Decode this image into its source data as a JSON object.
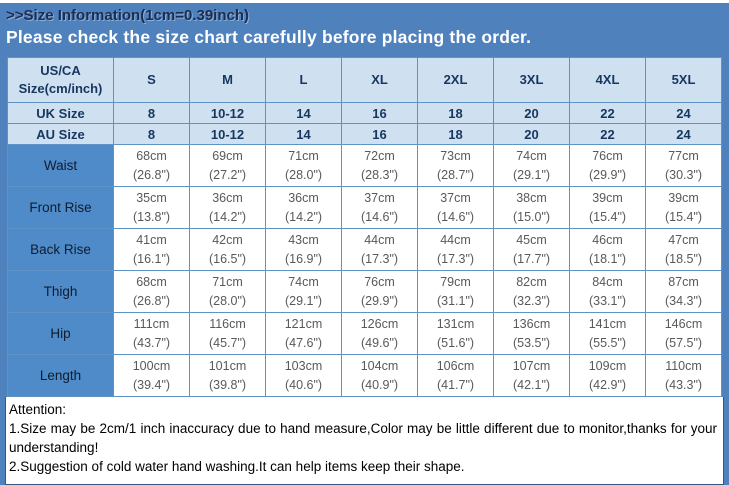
{
  "page": {
    "title": ">>Size Information(1cm=0.39inch)",
    "banner": "Please check the size chart carefully before placing the order."
  },
  "table": {
    "corner_header": "US/CA Size(cm/inch)",
    "size_columns": [
      "S",
      "M",
      "L",
      "XL",
      "2XL",
      "3XL",
      "4XL",
      "5XL"
    ],
    "simple_rows": [
      {
        "label": "UK Size",
        "values": [
          "8",
          "10-12",
          "14",
          "16",
          "18",
          "20",
          "22",
          "24"
        ]
      },
      {
        "label": "AU Size",
        "values": [
          "8",
          "10-12",
          "14",
          "16",
          "18",
          "20",
          "22",
          "24"
        ]
      }
    ],
    "measurement_rows": [
      {
        "label": "Waist",
        "cm": [
          "68cm",
          "69cm",
          "71cm",
          "72cm",
          "73cm",
          "74cm",
          "76cm",
          "77cm"
        ],
        "inch": [
          "(26.8\")",
          "(27.2\")",
          "(28.0\")",
          "(28.3\")",
          "(28.7\")",
          "(29.1\")",
          "(29.9\")",
          "(30.3\")"
        ]
      },
      {
        "label": "Front Rise",
        "cm": [
          "35cm",
          "36cm",
          "36cm",
          "37cm",
          "37cm",
          "38cm",
          "39cm",
          "39cm"
        ],
        "inch": [
          "(13.8\")",
          "(14.2\")",
          "(14.2\")",
          "(14.6\")",
          "(14.6\")",
          "(15.0\")",
          "(15.4\")",
          "(15.4\")"
        ]
      },
      {
        "label": "Back Rise",
        "cm": [
          "41cm",
          "42cm",
          "43cm",
          "44cm",
          "44cm",
          "45cm",
          "46cm",
          "47cm"
        ],
        "inch": [
          "(16.1\")",
          "(16.5\")",
          "(16.9\")",
          "(17.3\")",
          "(17.3\")",
          "(17.7\")",
          "(18.1\")",
          "(18.5\")"
        ]
      },
      {
        "label": "Thigh",
        "cm": [
          "68cm",
          "71cm",
          "74cm",
          "76cm",
          "79cm",
          "82cm",
          "84cm",
          "87cm"
        ],
        "inch": [
          "(26.8\")",
          "(28.0\")",
          "(29.1\")",
          "(29.9\")",
          "(31.1\")",
          "(32.3\")",
          "(33.1\")",
          "(34.3\")"
        ]
      },
      {
        "label": "Hip",
        "cm": [
          "111cm",
          "116cm",
          "121cm",
          "126cm",
          "131cm",
          "136cm",
          "141cm",
          "146cm"
        ],
        "inch": [
          "(43.7\")",
          "(45.7\")",
          "(47.6\")",
          "(49.6\")",
          "(51.6\")",
          "(53.5\")",
          "(55.5\")",
          "(57.5\")"
        ]
      },
      {
        "label": "Length",
        "cm": [
          "100cm",
          "101cm",
          "103cm",
          "104cm",
          "106cm",
          "107cm",
          "109cm",
          "110cm"
        ],
        "inch": [
          "(39.4\")",
          "(39.8\")",
          "(40.6\")",
          "(40.9\")",
          "(41.7\")",
          "(42.1\")",
          "(42.9\")",
          "(43.3\")"
        ]
      }
    ]
  },
  "notes": {
    "heading": "Attention:",
    "line1": "1.Size may be 2cm/1 inch inaccuracy due to hand measure,Color may be little different due to monitor,thanks for your understanding!",
    "line2": "2.Suggestion of cold water hand washing.It can help items keep their shape."
  },
  "colors": {
    "banner_blue": "#4f81bd",
    "light_cell_blue": "#cfe0f1",
    "label_cell_blue": "#4e8bc8",
    "data_text_gray": "#595959"
  }
}
